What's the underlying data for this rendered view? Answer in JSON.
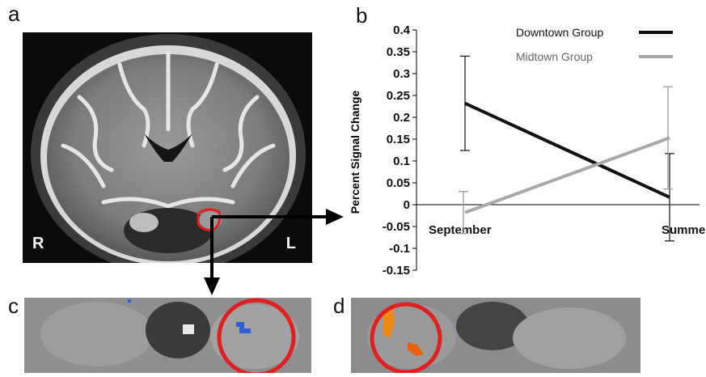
{
  "panels": {
    "a": "a",
    "b": "b",
    "c": "c",
    "d": "d"
  },
  "mri": {
    "right_marker": "R",
    "left_marker": "L"
  },
  "colors": {
    "downtown": "#111111",
    "midtown": "#a8a8a8",
    "roi_outline": "#e02020",
    "activation_blue": "#2f5fd0",
    "activation_orange": "#f08a10"
  },
  "chart_data": {
    "type": "line",
    "ylabel": "Percent Signal Change",
    "xlabel": "",
    "categories": [
      "September",
      "Summer"
    ],
    "ylim": [
      -0.15,
      0.4
    ],
    "yticks": [
      "0.4",
      "0.35",
      "0.3",
      "0.25",
      "0.2",
      "0.15",
      "0.1",
      "0.05",
      "0",
      "-0.05",
      "-0.1",
      "-0.15"
    ],
    "ytick_values": [
      0.4,
      0.35,
      0.3,
      0.25,
      0.2,
      0.15,
      0.1,
      0.05,
      0,
      -0.05,
      -0.1,
      -0.15
    ],
    "legend_position": "top-right",
    "series": [
      {
        "name": "Downtown Group",
        "values": [
          0.232,
          0.017
        ],
        "error": [
          0.108,
          0.1
        ],
        "color": "#111111"
      },
      {
        "name": "Midtown Group",
        "values": [
          -0.018,
          0.153
        ],
        "error": [
          0.048,
          0.117
        ],
        "color": "#a8a8a8"
      }
    ]
  }
}
